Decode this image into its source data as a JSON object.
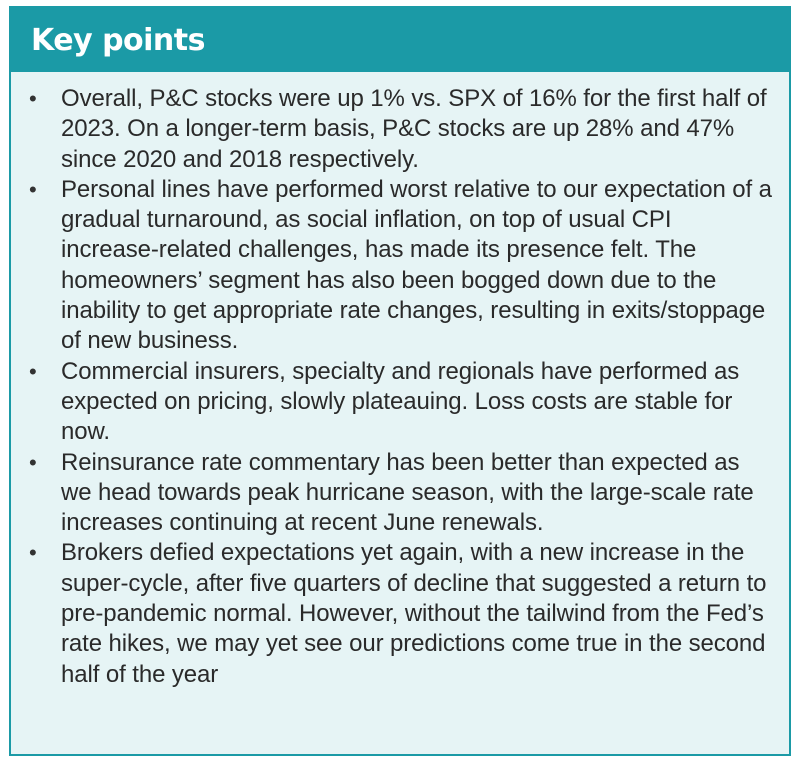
{
  "title": "Key points",
  "colors": {
    "header_background": "#1b9aa6",
    "border": "#1b9aa6",
    "body_background": "#e6f4f5",
    "text": "#2a2a2a"
  },
  "bullet_symbol": "•",
  "points": [
    "Overall, P&C stocks were up 1% vs. SPX of 16% for the first half of 2023. On a longer-term basis, P&C stocks are up 28% and 47% since 2020 and 2018 respectively.",
    "Personal lines have performed worst relative to our expectation of a gradual turnaround, as social inflation, on top of usual CPI increase-related challenges, has made its presence felt. The homeowners’ segment has also been bogged down due to the inability to get appropriate rate changes, resulting in exits/stoppage of new business.",
    "Commercial insurers, specialty and regionals have performed as expected on pricing, slowly plateauing. Loss costs are stable for now.",
    "Reinsurance rate commentary has been better than expected as we head towards peak hurricane season, with the large-scale rate increases continuing at recent June renewals.",
    "Brokers defied expectations yet again, with a new increase in the super-cycle, after five quarters of decline that suggested a return to pre-pandemic normal. However, without the tailwind from the Fed’s rate hikes, we may yet see our predictions come true in the second half of the year"
  ]
}
